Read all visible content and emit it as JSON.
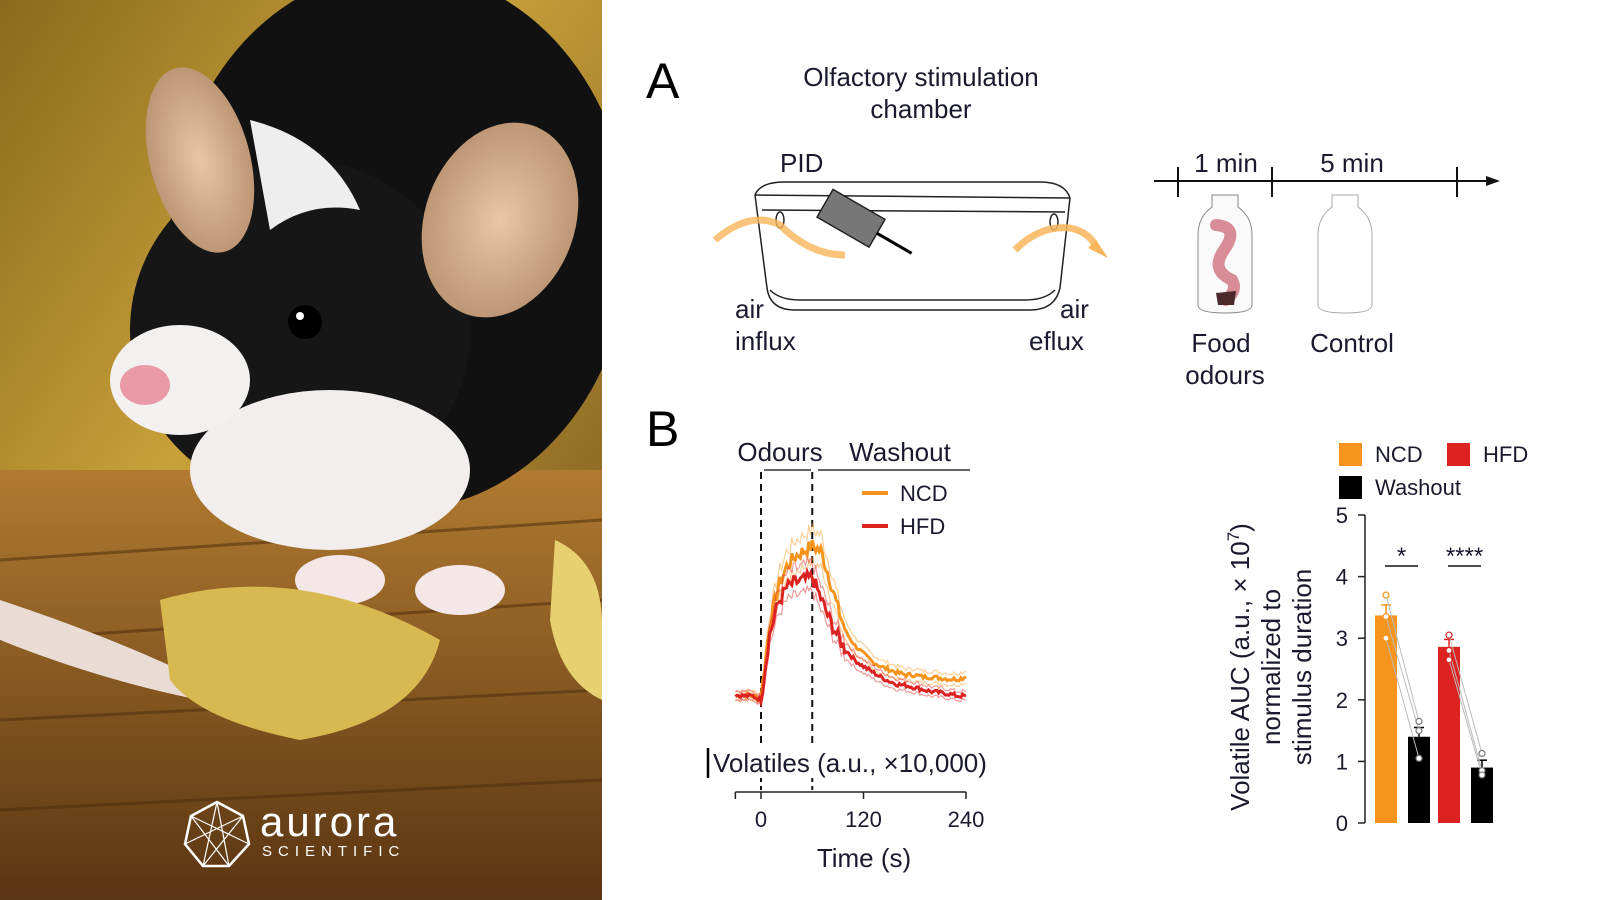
{
  "photo": {
    "logo_name": "aurora",
    "logo_sub": "SCIENTIFIC"
  },
  "panel_a": {
    "letter": "A",
    "title_line1": "Olfactory stimulation",
    "title_line2": "chamber",
    "pid_label": "PID",
    "air_influx_1": "air",
    "air_influx_2": "influx",
    "air_efflux_1": "air",
    "air_efflux_2": "eflux",
    "timeline": {
      "seg1": "1 min",
      "seg2": "5 min"
    },
    "food_label_1": "Food",
    "food_label_2": "odours",
    "control_label": "Control"
  },
  "panel_b": {
    "letter": "B",
    "odours_label": "Odours",
    "washout_label": "Washout",
    "scale_label": "Volatiles (a.u., ×10,000)",
    "bar_ylabel_1": "Volatile AUC (a.u., × 10",
    "bar_ylabel_exp": "7",
    "bar_ylabel_close": ")",
    "bar_ylabel_2": "normalized to",
    "bar_ylabel_3": "stimulus duration"
  },
  "colors": {
    "ncd": "#f7941d",
    "hfd": "#dd2222",
    "washout": "#000000",
    "air_arrow": "#f9b55a"
  },
  "chart_data": [
    {
      "type": "line",
      "title": "",
      "xlabel": "Time (s)",
      "ylabel": "Volatiles (a.u., ×10,000)",
      "xlim": [
        -30,
        240
      ],
      "xticks": [
        0,
        120,
        240
      ],
      "odour_window": [
        0,
        60
      ],
      "legend": [
        "NCD",
        "HFD"
      ],
      "legend_position": "top-right",
      "x": [
        -30,
        -20,
        -10,
        0,
        10,
        20,
        30,
        40,
        50,
        60,
        70,
        80,
        90,
        100,
        110,
        120,
        130,
        140,
        150,
        160,
        170,
        180,
        190,
        200,
        210,
        220,
        230,
        240
      ],
      "series": [
        {
          "name": "NCD",
          "values": [
            0.02,
            0.03,
            0.02,
            0.0,
            0.7,
            1.05,
            1.25,
            1.35,
            1.4,
            1.45,
            1.4,
            1.15,
            0.85,
            0.62,
            0.5,
            0.42,
            0.35,
            0.3,
            0.27,
            0.24,
            0.22,
            0.22,
            0.2,
            0.2,
            0.19,
            0.18,
            0.18,
            0.2
          ]
        },
        {
          "name": "HFD",
          "values": [
            0.03,
            0.02,
            0.02,
            -0.02,
            0.6,
            0.9,
            1.05,
            1.1,
            1.12,
            1.15,
            0.95,
            0.75,
            0.58,
            0.45,
            0.36,
            0.3,
            0.25,
            0.2,
            0.16,
            0.13,
            0.12,
            0.1,
            0.08,
            0.06,
            0.05,
            0.04,
            0.02,
            0.02
          ]
        }
      ]
    },
    {
      "type": "bar",
      "ylabel": "Volatile AUC (a.u., ×10^7) normalized to stimulus duration",
      "ylim": [
        0,
        5
      ],
      "yticks": [
        "0",
        "1",
        "2",
        "3",
        "4",
        "5"
      ],
      "legend": [
        "NCD",
        "HFD",
        "Washout"
      ],
      "legend_position": "top",
      "bars": [
        {
          "group": "NCD",
          "condition": "Odours",
          "value": 3.37,
          "err": 0.17,
          "points": [
            3.7,
            3.35,
            3.0
          ]
        },
        {
          "group": "NCD",
          "condition": "Washout",
          "value": 1.4,
          "err": 0.15,
          "points": [
            1.65,
            1.5,
            1.05
          ]
        },
        {
          "group": "HFD",
          "condition": "Odours",
          "value": 2.86,
          "err": 0.12,
          "points": [
            3.05,
            2.8,
            2.65
          ]
        },
        {
          "group": "HFD",
          "condition": "Washout",
          "value": 0.9,
          "err": 0.12,
          "points": [
            1.13,
            0.85,
            0.78
          ]
        }
      ],
      "significance": [
        "*",
        "****"
      ]
    }
  ]
}
